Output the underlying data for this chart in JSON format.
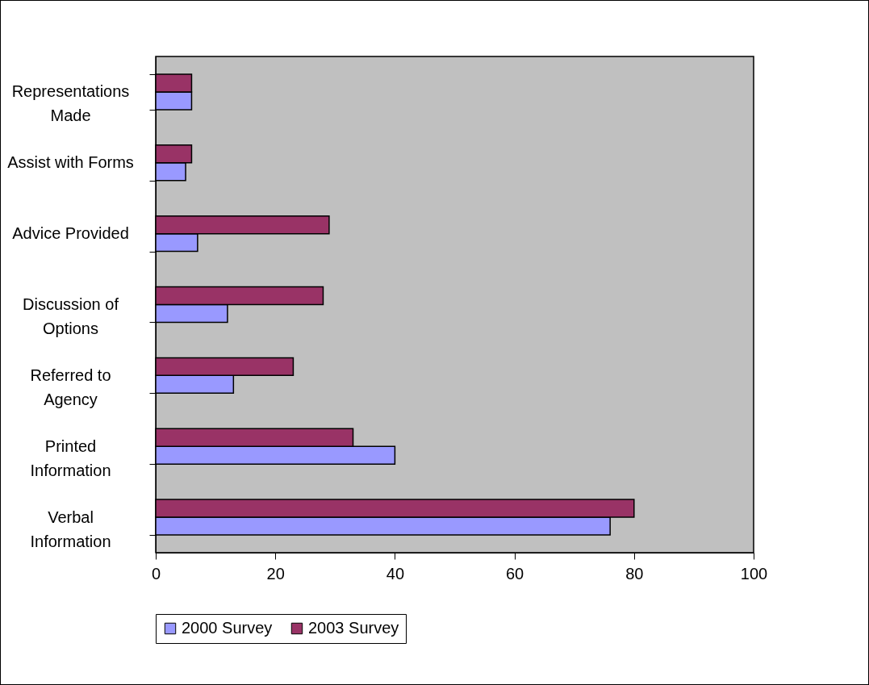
{
  "chart_data": {
    "type": "bar",
    "orientation": "horizontal",
    "categories": [
      "Representations\nMade",
      "Assist with Forms",
      "Advice Provided",
      "Discussion of\nOptions",
      "Referred to\nAgency",
      "Printed\nInformation",
      "Verbal\nInformation"
    ],
    "series": [
      {
        "name": "2000 Survey",
        "color": "#9999ff",
        "values": [
          6,
          5,
          7,
          12,
          13,
          40,
          76
        ]
      },
      {
        "name": "2003 Survey",
        "color": "#993366",
        "values": [
          6,
          6,
          29,
          28,
          23,
          33,
          80
        ]
      }
    ],
    "xlim": [
      0,
      100
    ],
    "xticks": [
      0,
      20,
      40,
      60,
      80,
      100
    ],
    "grid": false,
    "legend": "bottom"
  }
}
